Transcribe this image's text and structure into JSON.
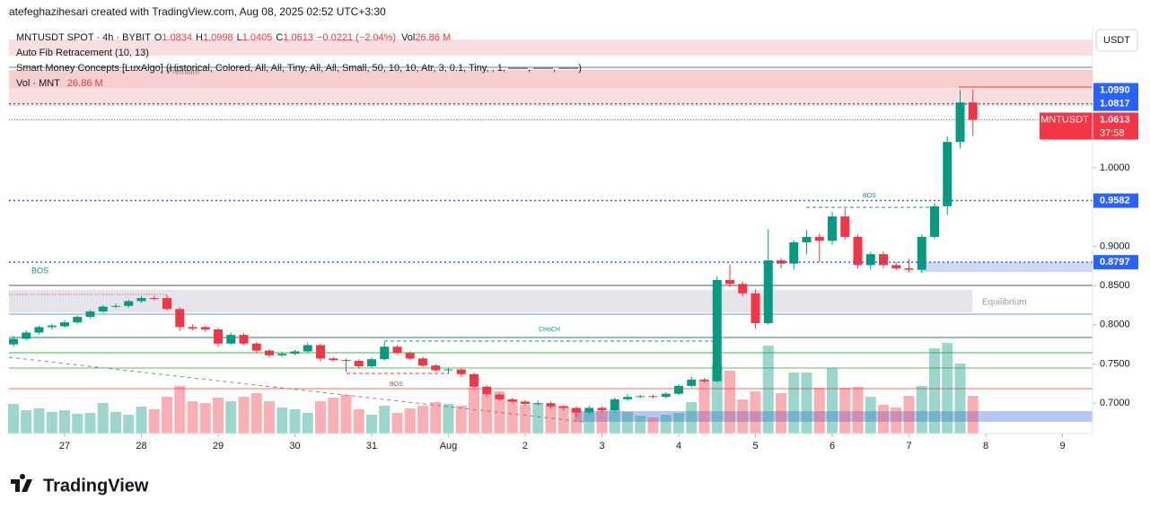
{
  "credit": "atefeghazihesari created with TradingView.com, Aug 08, 2025 02:52 UTC+3:30",
  "legend": {
    "symbol": "MNTUSDT SPOT · 4h · BYBIT",
    "o_label": "O",
    "o": "1.0834",
    "h_label": "H",
    "h": "1.0998",
    "l_label": "L",
    "l": "1.0405",
    "c_label": "C",
    "c": "1.0613",
    "change": "−0.0221 (−2.04%)",
    "vol_label": "Vol",
    "vol": "26.86 M"
  },
  "indicators": [
    "Auto Fib Retracement (10, 13)",
    "Smart Money Concepts [LuxAlgo] (Historical, Colored, All, All, Tiny, All, All, Small, 50, 10, 10, Atr, 3, 0.1, Tiny, , 1, ——, ——, ——)"
  ],
  "vol_legend": {
    "name": "Vol · MNT",
    "value": "26.86 M"
  },
  "annotations": {
    "premium": "Premium",
    "bos1": "BOS",
    "choch": "CHoCH",
    "bos2": "BOS",
    "bos3": "BOS",
    "equilibrium": "Equilibrium"
  },
  "currency": "USDT",
  "brand": "TradingView",
  "chart_data": {
    "type": "candlestick",
    "up_color": "#089981",
    "down_color": "#f23645",
    "xlim": [
      -0.35,
      84.35
    ],
    "ylim": [
      0.6613,
      1.1682
    ],
    "xticks": [
      {
        "value": 4,
        "label": "27"
      },
      {
        "value": 10,
        "label": "28"
      },
      {
        "value": 16,
        "label": "29"
      },
      {
        "value": 22,
        "label": "30"
      },
      {
        "value": 28,
        "label": "31"
      },
      {
        "value": 34,
        "label": "Aug"
      },
      {
        "value": 40,
        "label": "2"
      },
      {
        "value": 46,
        "label": "3"
      },
      {
        "value": 52,
        "label": "4"
      },
      {
        "value": 58,
        "label": "5"
      },
      {
        "value": 64,
        "label": "6"
      },
      {
        "value": 70,
        "label": "7"
      },
      {
        "value": 76,
        "label": "8"
      },
      {
        "value": 82,
        "label": "9"
      }
    ],
    "yticks": [
      {
        "value": 0.7,
        "label": "0.7000"
      },
      {
        "value": 0.75,
        "label": "0.7500"
      },
      {
        "value": 0.8,
        "label": "0.8000"
      },
      {
        "value": 0.85,
        "label": "0.8500"
      },
      {
        "value": 0.9,
        "label": "0.9000"
      },
      {
        "value": 1.0,
        "label": "1.0000"
      }
    ],
    "candles": [
      [
        0.775,
        0.786,
        0.772,
        0.782
      ],
      [
        0.782,
        0.793,
        0.78,
        0.79
      ],
      [
        0.79,
        0.799,
        0.788,
        0.797
      ],
      [
        0.797,
        0.801,
        0.794,
        0.799
      ],
      [
        0.798,
        0.806,
        0.796,
        0.803
      ],
      [
        0.803,
        0.812,
        0.801,
        0.81
      ],
      [
        0.81,
        0.819,
        0.808,
        0.817
      ],
      [
        0.817,
        0.825,
        0.815,
        0.823
      ],
      [
        0.823,
        0.827,
        0.821,
        0.824
      ],
      [
        0.824,
        0.832,
        0.822,
        0.83
      ],
      [
        0.83,
        0.837,
        0.828,
        0.834
      ],
      [
        0.834,
        0.837,
        0.831,
        0.833
      ],
      [
        0.834,
        0.838,
        0.818,
        0.82
      ],
      [
        0.82,
        0.822,
        0.792,
        0.797
      ],
      [
        0.797,
        0.8,
        0.793,
        0.795
      ],
      [
        0.797,
        0.799,
        0.791,
        0.794
      ],
      [
        0.794,
        0.796,
        0.772,
        0.776
      ],
      [
        0.776,
        0.79,
        0.774,
        0.787
      ],
      [
        0.787,
        0.789,
        0.774,
        0.776
      ],
      [
        0.776,
        0.778,
        0.764,
        0.767
      ],
      [
        0.767,
        0.769,
        0.758,
        0.761
      ],
      [
        0.761,
        0.765,
        0.759,
        0.763
      ],
      [
        0.763,
        0.768,
        0.761,
        0.766
      ],
      [
        0.766,
        0.777,
        0.764,
        0.774
      ],
      [
        0.774,
        0.776,
        0.753,
        0.757
      ],
      [
        0.757,
        0.759,
        0.753,
        0.755
      ],
      [
        0.755,
        0.757,
        0.74,
        0.754
      ],
      [
        0.754,
        0.756,
        0.744,
        0.747
      ],
      [
        0.747,
        0.758,
        0.745,
        0.756
      ],
      [
        0.756,
        0.778,
        0.754,
        0.772
      ],
      [
        0.772,
        0.774,
        0.762,
        0.764
      ],
      [
        0.764,
        0.766,
        0.755,
        0.757
      ],
      [
        0.757,
        0.759,
        0.746,
        0.748
      ],
      [
        0.748,
        0.75,
        0.74,
        0.742
      ],
      [
        0.742,
        0.745,
        0.738,
        0.743
      ],
      [
        0.743,
        0.745,
        0.733,
        0.737
      ],
      [
        0.737,
        0.739,
        0.718,
        0.721
      ],
      [
        0.721,
        0.723,
        0.708,
        0.711
      ],
      [
        0.711,
        0.713,
        0.703,
        0.705
      ],
      [
        0.705,
        0.707,
        0.7,
        0.702
      ],
      [
        0.702,
        0.704,
        0.697,
        0.699
      ],
      [
        0.699,
        0.703,
        0.697,
        0.7
      ],
      [
        0.7,
        0.702,
        0.693,
        0.696
      ],
      [
        0.696,
        0.698,
        0.691,
        0.694
      ],
      [
        0.694,
        0.696,
        0.682,
        0.688
      ],
      [
        0.688,
        0.697,
        0.686,
        0.694
      ],
      [
        0.694,
        0.696,
        0.689,
        0.691
      ],
      [
        0.691,
        0.707,
        0.689,
        0.705
      ],
      [
        0.705,
        0.712,
        0.703,
        0.708
      ],
      [
        0.708,
        0.711,
        0.706,
        0.709
      ],
      [
        0.709,
        0.711,
        0.706,
        0.708
      ],
      [
        0.708,
        0.714,
        0.706,
        0.712
      ],
      [
        0.712,
        0.724,
        0.71,
        0.722
      ],
      [
        0.722,
        0.734,
        0.72,
        0.73
      ],
      [
        0.73,
        0.732,
        0.726,
        0.728
      ],
      [
        0.728,
        0.862,
        0.726,
        0.857
      ],
      [
        0.857,
        0.877,
        0.848,
        0.852
      ],
      [
        0.852,
        0.855,
        0.836,
        0.84
      ],
      [
        0.84,
        0.845,
        0.795,
        0.802
      ],
      [
        0.802,
        0.922,
        0.8,
        0.882
      ],
      [
        0.882,
        0.885,
        0.872,
        0.878
      ],
      [
        0.878,
        0.908,
        0.87,
        0.905
      ],
      [
        0.905,
        0.92,
        0.89,
        0.912
      ],
      [
        0.912,
        0.916,
        0.88,
        0.907
      ],
      [
        0.907,
        0.944,
        0.902,
        0.938
      ],
      [
        0.938,
        0.948,
        0.908,
        0.912
      ],
      [
        0.912,
        0.915,
        0.872,
        0.876
      ],
      [
        0.876,
        0.893,
        0.87,
        0.89
      ],
      [
        0.89,
        0.893,
        0.872,
        0.876
      ],
      [
        0.876,
        0.88,
        0.87,
        0.872
      ],
      [
        0.872,
        0.884,
        0.867,
        0.87
      ],
      [
        0.87,
        0.915,
        0.866,
        0.912
      ],
      [
        0.912,
        0.955,
        0.909,
        0.951
      ],
      [
        0.951,
        1.04,
        0.94,
        1.033
      ],
      [
        1.033,
        1.099,
        1.025,
        1.0834
      ],
      [
        1.0834,
        1.0998,
        1.0405,
        1.0613
      ]
    ],
    "volume": [
      21.1,
      16.6,
      17.9,
      15.4,
      16.6,
      14.1,
      14.7,
      21.8,
      15.4,
      13.4,
      19.2,
      17.3,
      26.2,
      33.9,
      23.0,
      21.8,
      25.6,
      23.0,
      26.2,
      28.8,
      23.0,
      18.6,
      17.3,
      14.7,
      23.0,
      25.6,
      27.5,
      17.3,
      13.4,
      19.8,
      14.7,
      17.9,
      19.8,
      22.4,
      21.1,
      19.8,
      32.6,
      27.5,
      30.1,
      24.3,
      20.5,
      21.8,
      20.5,
      19.8,
      17.3,
      14.7,
      16.0,
      17.3,
      15.4,
      12.8,
      11.5,
      13.4,
      14.7,
      22.4,
      37.8,
      49.3,
      44.8,
      24.3,
      30.1,
      62.7,
      28.8,
      43.5,
      43.5,
      32.6,
      46.7,
      32.6,
      33.3,
      26.2,
      20.5,
      18.6,
      26.9,
      33.9,
      60.8,
      64.6,
      49.9,
      26.86
    ],
    "levels": [
      {
        "value": 1.099,
        "label": "1.0990",
        "color": "#2962ff"
      },
      {
        "value": 1.0817,
        "label": "1.0817",
        "color": "#2962ff"
      },
      {
        "value": 0.9582,
        "label": "0.9582",
        "color": "#2962ff"
      },
      {
        "value": 0.8797,
        "label": "0.8797",
        "color": "#2962ff"
      }
    ],
    "last_price": {
      "value": 1.0613,
      "name": "MNTUSDT",
      "label": "1.0613",
      "countdown": "37:58",
      "color": "#f23645"
    }
  }
}
